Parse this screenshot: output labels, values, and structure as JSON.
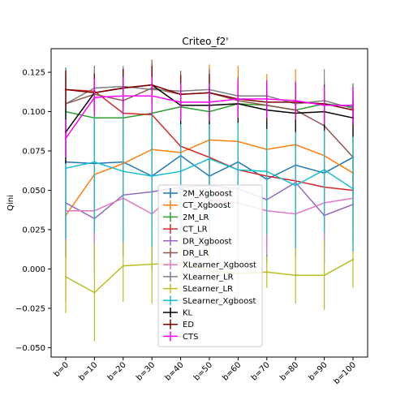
{
  "chart_data": {
    "type": "line",
    "title": "Criteo_f2'",
    "xlabel": "",
    "ylabel": "Qini",
    "categories": [
      "b=0",
      "b=10",
      "b=20",
      "b=30",
      "b=40",
      "b=50",
      "b=60",
      "b=70",
      "b=80",
      "b=90",
      "b=100"
    ],
    "ylim": [
      -0.056,
      0.14
    ],
    "yticks": [
      -0.05,
      -0.025,
      0.0,
      0.025,
      0.05,
      0.075,
      0.1,
      0.125
    ],
    "ytick_labels": [
      "−0.050",
      "−0.025",
      "0.000",
      "0.025",
      "0.050",
      "0.075",
      "0.100",
      "0.125"
    ],
    "grid": false,
    "legend_position": "lower-center",
    "error_bars": true,
    "series": [
      {
        "name": "2M_Xgboost",
        "color": "#1f77b4",
        "values": [
          0.068,
          0.067,
          0.068,
          0.059,
          0.072,
          0.059,
          0.068,
          0.057,
          0.066,
          0.061,
          0.071
        ],
        "err": [
          0.06,
          0.06,
          0.06,
          0.06,
          0.052,
          0.05,
          0.052,
          0.053,
          0.053,
          0.048,
          0.045
        ]
      },
      {
        "name": "CT_Xgboost",
        "color": "#ff7f0e",
        "values": [
          0.034,
          0.06,
          0.067,
          0.076,
          0.074,
          0.082,
          0.081,
          0.076,
          0.079,
          0.072,
          0.061
        ],
        "err": [
          0.055,
          0.055,
          0.055,
          0.055,
          0.05,
          0.048,
          0.048,
          0.048,
          0.048,
          0.045,
          0.045
        ]
      },
      {
        "name": "2M_LR",
        "color": "#2ca02c",
        "values": [
          0.1,
          0.096,
          0.096,
          0.099,
          0.103,
          0.1,
          0.105,
          0.104,
          0.101,
          0.105,
          0.103
        ],
        "err": [
          0.027,
          0.027,
          0.027,
          0.027,
          0.02,
          0.02,
          0.015,
          0.015,
          0.015,
          0.015,
          0.015
        ]
      },
      {
        "name": "CT_LR",
        "color": "#d62728",
        "values": [
          0.114,
          0.113,
          0.099,
          0.098,
          0.078,
          0.071,
          0.063,
          0.059,
          0.056,
          0.052,
          0.05
        ],
        "err": [
          0.012,
          0.012,
          0.012,
          0.012,
          0.012,
          0.012,
          0.012,
          0.012,
          0.012,
          0.012,
          0.012
        ]
      },
      {
        "name": "DR_Xgboost",
        "color": "#9467bd",
        "values": [
          0.042,
          0.032,
          0.047,
          0.049,
          0.052,
          0.053,
          0.051,
          0.044,
          0.055,
          0.034,
          0.041
        ],
        "err": [
          0.035,
          0.035,
          0.035,
          0.035,
          0.03,
          0.03,
          0.03,
          0.03,
          0.03,
          0.03,
          0.03
        ]
      },
      {
        "name": "DR_LR",
        "color": "#8c564b",
        "values": [
          0.105,
          0.111,
          0.107,
          0.115,
          0.111,
          0.112,
          0.107,
          0.104,
          0.101,
          0.091,
          0.071
        ],
        "err": [
          0.018,
          0.018,
          0.018,
          0.018,
          0.015,
          0.015,
          0.015,
          0.015,
          0.015,
          0.015,
          0.015
        ]
      },
      {
        "name": "XLearner_Xgboost",
        "color": "#e377c2",
        "values": [
          0.037,
          0.037,
          0.045,
          0.035,
          0.051,
          0.044,
          0.042,
          0.037,
          0.035,
          0.042,
          0.045
        ],
        "err": [
          0.03,
          0.03,
          0.03,
          0.03,
          0.028,
          0.028,
          0.028,
          0.028,
          0.028,
          0.028,
          0.028
        ]
      },
      {
        "name": "XLearner_LR",
        "color": "#7f7f7f",
        "values": [
          0.105,
          0.115,
          0.116,
          0.114,
          0.113,
          0.114,
          0.11,
          0.11,
          0.105,
          0.107,
          0.102
        ],
        "err": [
          0.022,
          0.013,
          0.013,
          0.013,
          0.01,
          0.01,
          0.01,
          0.01,
          0.01,
          0.02,
          0.01
        ]
      },
      {
        "name": "SLearner_LR",
        "color": "#bcbd22",
        "values": [
          -0.005,
          -0.015,
          0.002,
          0.003,
          0.004,
          -0.001,
          -0.003,
          -0.002,
          -0.004,
          -0.004,
          0.006
        ],
        "err": [
          0.023,
          0.031,
          0.023,
          0.025,
          0.02,
          0.017,
          0.017,
          0.01,
          0.018,
          0.022,
          0.018
        ]
      },
      {
        "name": "SLearner_Xgboost",
        "color": "#17becf",
        "values": [
          0.064,
          0.068,
          0.062,
          0.059,
          0.062,
          0.07,
          0.063,
          0.062,
          0.053,
          0.063,
          0.051
        ],
        "err": [
          0.045,
          0.045,
          0.045,
          0.045,
          0.04,
          0.04,
          0.04,
          0.04,
          0.04,
          0.04,
          0.04
        ]
      },
      {
        "name": "KL",
        "color": "#000000",
        "values": [
          0.087,
          0.112,
          0.115,
          0.117,
          0.104,
          0.104,
          0.105,
          0.101,
          0.099,
          0.1,
          0.096
        ],
        "err": [
          0.02,
          0.012,
          0.012,
          0.012,
          0.012,
          0.012,
          0.012,
          0.012,
          0.012,
          0.012,
          0.012
        ]
      },
      {
        "name": "ED",
        "color": "#800000",
        "values": [
          0.114,
          0.112,
          0.115,
          0.117,
          0.111,
          0.112,
          0.108,
          0.106,
          0.106,
          0.105,
          0.101
        ],
        "err": [
          0.012,
          0.012,
          0.012,
          0.012,
          0.012,
          0.012,
          0.012,
          0.012,
          0.012,
          0.012,
          0.012
        ]
      },
      {
        "name": "CTS",
        "color": "#ff00ff",
        "values": [
          0.083,
          0.109,
          0.11,
          0.11,
          0.106,
          0.106,
          0.108,
          0.108,
          0.107,
          0.104,
          0.104
        ],
        "err": [
          0.012,
          0.012,
          0.012,
          0.012,
          0.012,
          0.012,
          0.012,
          0.012,
          0.012,
          0.012,
          0.012
        ]
      }
    ]
  }
}
